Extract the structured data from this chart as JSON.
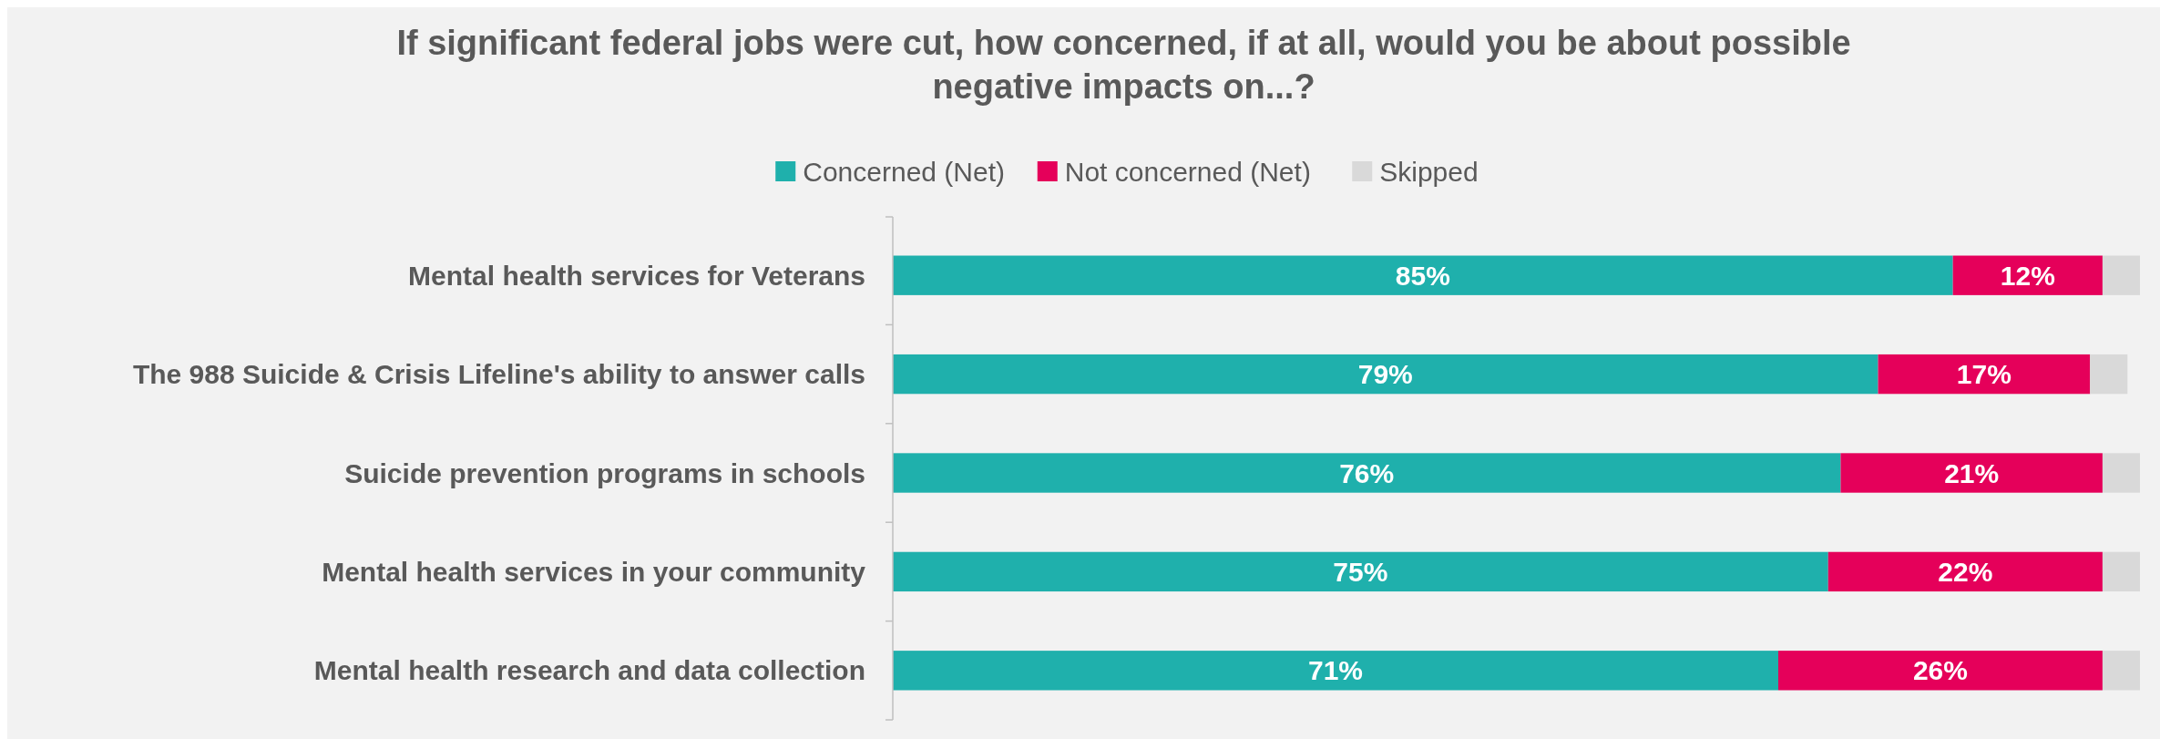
{
  "chart_data": {
    "type": "bar",
    "orientation": "horizontal",
    "stacked": true,
    "title": "If significant federal jobs were cut, how concerned, if at all, would you be about possible negative impacts on...?",
    "legend": "top",
    "categories": [
      "Mental health services for Veterans",
      "The 988 Suicide & Crisis Lifeline's ability to answer calls",
      "Suicide prevention programs in schools",
      "Mental health services in your community",
      "Mental health research and data collection"
    ],
    "series": [
      {
        "name": "Concerned (Net)",
        "color": "#1fb0ac",
        "values": [
          85,
          79,
          76,
          75,
          71
        ],
        "value_labels": [
          "85%",
          "79%",
          "76%",
          "75%",
          "71%"
        ]
      },
      {
        "name": "Not concerned (Net)",
        "color": "#e5005a",
        "values": [
          12,
          17,
          21,
          22,
          26
        ],
        "value_labels": [
          "12%",
          "17%",
          "21%",
          "22%",
          "26%"
        ]
      },
      {
        "name": "Skipped",
        "color": "#d9d9d9",
        "values": [
          3,
          3,
          3,
          3,
          3
        ]
      }
    ]
  }
}
